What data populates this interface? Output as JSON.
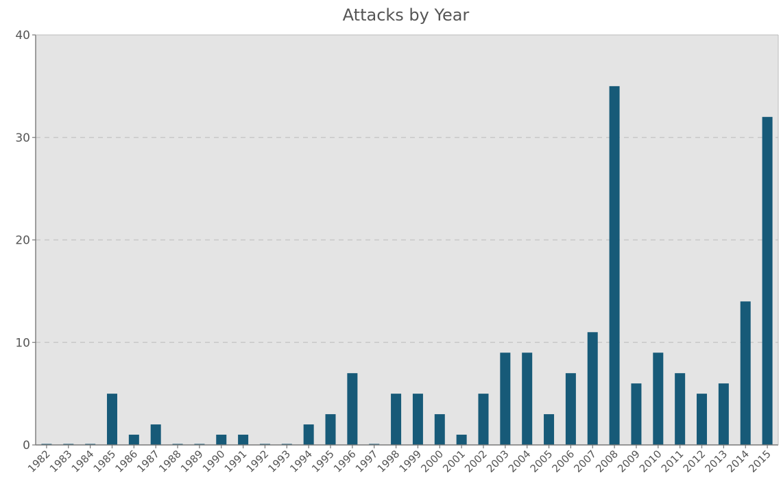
{
  "chart_data": {
    "type": "bar",
    "title": "Attacks by Year",
    "xlabel": "",
    "ylabel": "",
    "ylim": [
      0,
      40
    ],
    "yticks": [
      "0",
      "10",
      "20",
      "30",
      "40"
    ],
    "categories": [
      "1982",
      "1983",
      "1984",
      "1985",
      "1986",
      "1987",
      "1988",
      "1989",
      "1990",
      "1991",
      "1992",
      "1993",
      "1994",
      "1995",
      "1996",
      "1997",
      "1998",
      "1999",
      "2000",
      "2001",
      "2002",
      "2003",
      "2004",
      "2005",
      "2006",
      "2007",
      "2008",
      "2009",
      "2010",
      "2011",
      "2012",
      "2013",
      "2014",
      "2015"
    ],
    "values": [
      0,
      0,
      0,
      5,
      1,
      2,
      0,
      0,
      1,
      1,
      0,
      0,
      2,
      3,
      7,
      0,
      5,
      5,
      3,
      1,
      5,
      9,
      9,
      3,
      7,
      11,
      35,
      6,
      9,
      7,
      5,
      6,
      14,
      32
    ],
    "grid": true,
    "colors": {
      "bar": "#175a78",
      "plot_background": "#e4e4e4"
    }
  }
}
